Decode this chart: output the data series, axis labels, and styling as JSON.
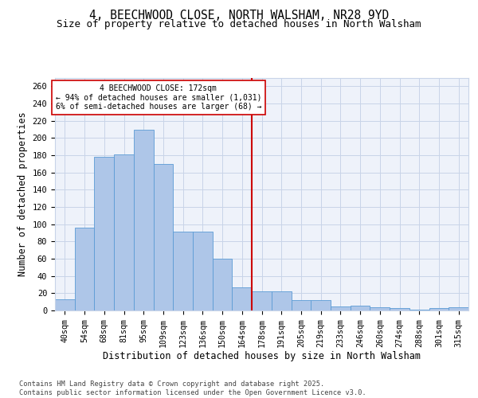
{
  "title_line1": "4, BEECHWOOD CLOSE, NORTH WALSHAM, NR28 9YD",
  "title_line2": "Size of property relative to detached houses in North Walsham",
  "xlabel": "Distribution of detached houses by size in North Walsham",
  "ylabel": "Number of detached properties",
  "categories": [
    "40sqm",
    "54sqm",
    "68sqm",
    "81sqm",
    "95sqm",
    "109sqm",
    "123sqm",
    "136sqm",
    "150sqm",
    "164sqm",
    "178sqm",
    "191sqm",
    "205sqm",
    "219sqm",
    "233sqm",
    "246sqm",
    "260sqm",
    "274sqm",
    "288sqm",
    "301sqm",
    "315sqm"
  ],
  "values": [
    13,
    96,
    178,
    181,
    210,
    170,
    91,
    91,
    60,
    27,
    22,
    22,
    12,
    12,
    5,
    6,
    4,
    3,
    1,
    3,
    4
  ],
  "bar_color": "#aec6e8",
  "bar_edge_color": "#5b9bd5",
  "grid_color": "#c8d4e8",
  "background_color": "#eef2fa",
  "ref_line_color": "#cc0000",
  "annotation_line1": "4 BEECHWOOD CLOSE: 172sqm",
  "annotation_line2": "← 94% of detached houses are smaller (1,031)",
  "annotation_line3": "6% of semi-detached houses are larger (68) →",
  "footer_text": "Contains HM Land Registry data © Crown copyright and database right 2025.\nContains public sector information licensed under the Open Government Licence v3.0.",
  "ylim": [
    0,
    270
  ],
  "yticks": [
    0,
    20,
    40,
    60,
    80,
    100,
    120,
    140,
    160,
    180,
    200,
    220,
    240,
    260
  ]
}
